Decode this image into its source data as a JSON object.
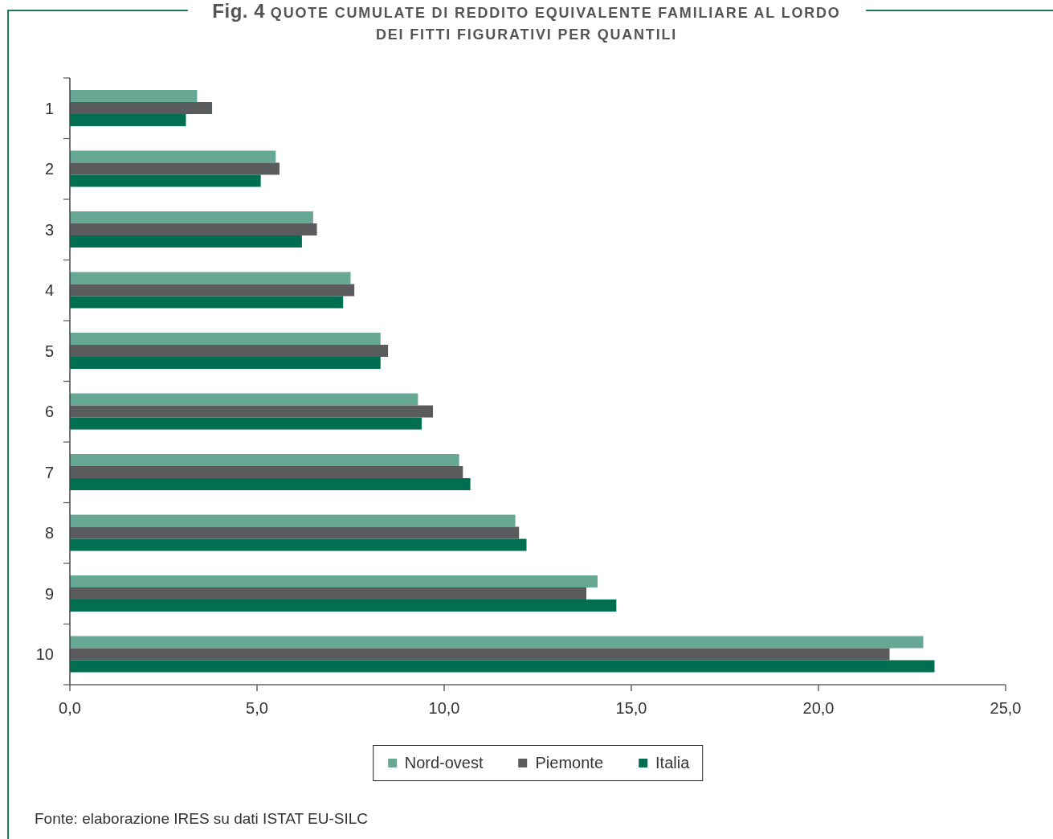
{
  "chart_data": {
    "type": "bar",
    "orientation": "horizontal",
    "title": "Fig. 4 QUOTE CUMULATE DI REDDITO EQUIVALENTE FAMILIARE AL LORDO DEI FITTI FIGURATIVI PER QUANTILI",
    "categories": [
      "1",
      "2",
      "3",
      "4",
      "5",
      "6",
      "7",
      "8",
      "9",
      "10"
    ],
    "series": [
      {
        "name": "Nord-ovest",
        "color": "#66a894",
        "values": [
          3.4,
          5.5,
          6.5,
          7.5,
          8.3,
          9.3,
          10.4,
          11.9,
          14.1,
          22.8
        ]
      },
      {
        "name": "Piemonte",
        "color": "#5a5b5d",
        "values": [
          3.8,
          5.6,
          6.6,
          7.6,
          8.5,
          9.7,
          10.5,
          12.0,
          13.8,
          21.9
        ]
      },
      {
        "name": "Italia",
        "color": "#006f51",
        "values": [
          3.1,
          5.1,
          6.2,
          7.3,
          8.3,
          9.4,
          10.7,
          12.2,
          14.6,
          23.1
        ]
      }
    ],
    "xlim": [
      0,
      25
    ],
    "xticks": [
      {
        "value": 0,
        "label": "0,0"
      },
      {
        "value": 5,
        "label": "5,0"
      },
      {
        "value": 10,
        "label": "10,0"
      },
      {
        "value": 15,
        "label": "15,0"
      },
      {
        "value": 20,
        "label": "20,0"
      },
      {
        "value": 25,
        "label": "25,0"
      }
    ],
    "legend": "bottom",
    "annotations": [
      "Fonte: elaborazione IRES su dati ISTAT EU-SILC"
    ]
  }
}
